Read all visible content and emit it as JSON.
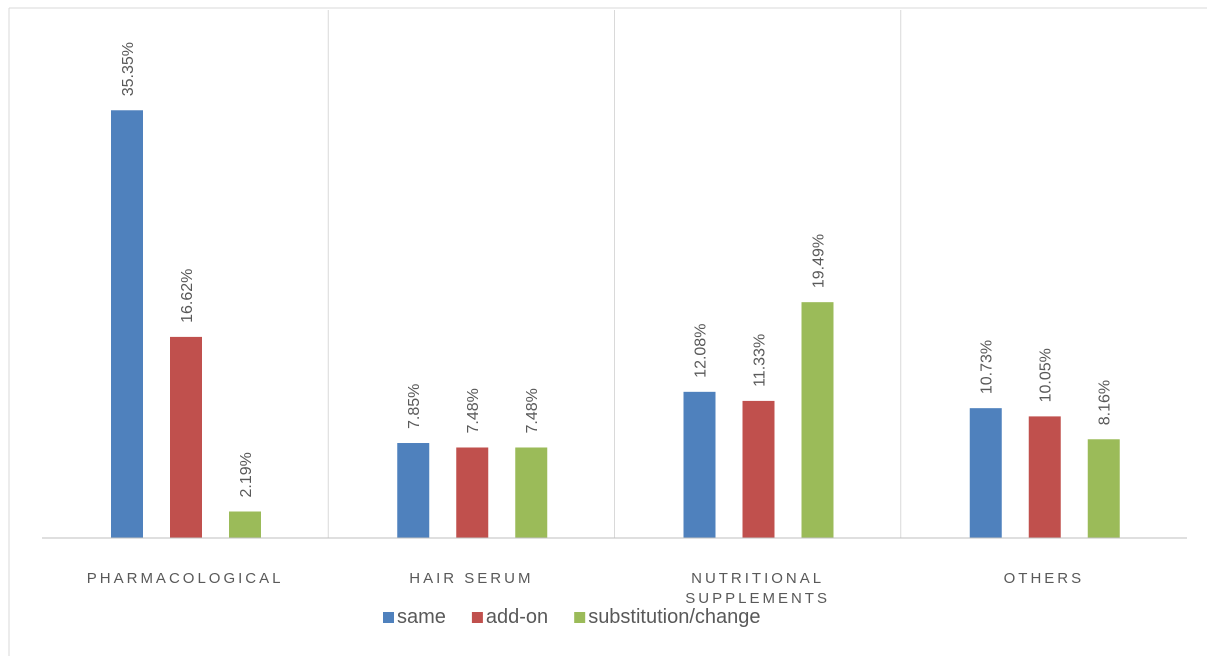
{
  "chart_data": {
    "type": "bar",
    "categories": [
      "PHARMACOLOGICAL",
      "HAIR SERUM",
      "NUTRITIONAL SUPPLEMENTS",
      "OTHERS"
    ],
    "category_lines": [
      [
        "PHARMACOLOGICAL"
      ],
      [
        "HAIR SERUM"
      ],
      [
        "NUTRITIONAL",
        "SUPPLEMENTS"
      ],
      [
        "OTHERS"
      ]
    ],
    "series": [
      {
        "name": "same",
        "color": "#4f81bd",
        "values": [
          35.35,
          7.85,
          12.08,
          10.73
        ],
        "labels": [
          "35.35%",
          "7.85%",
          "12.08%",
          "10.73%"
        ]
      },
      {
        "name": "add-on",
        "color": "#c0504d",
        "values": [
          16.62,
          7.48,
          11.33,
          10.05
        ],
        "labels": [
          "16.62%",
          "7.48%",
          "11.33%",
          "10.05%"
        ]
      },
      {
        "name": "substitution/change",
        "color": "#9bbb59",
        "values": [
          2.19,
          7.48,
          19.49,
          8.16
        ],
        "labels": [
          "2.19%",
          "7.48%",
          "19.49%",
          "8.16%"
        ]
      }
    ],
    "ylim": [
      0,
      40
    ],
    "value_unit": "%",
    "legend_position": "bottom",
    "grid": false,
    "category_separators": true
  }
}
